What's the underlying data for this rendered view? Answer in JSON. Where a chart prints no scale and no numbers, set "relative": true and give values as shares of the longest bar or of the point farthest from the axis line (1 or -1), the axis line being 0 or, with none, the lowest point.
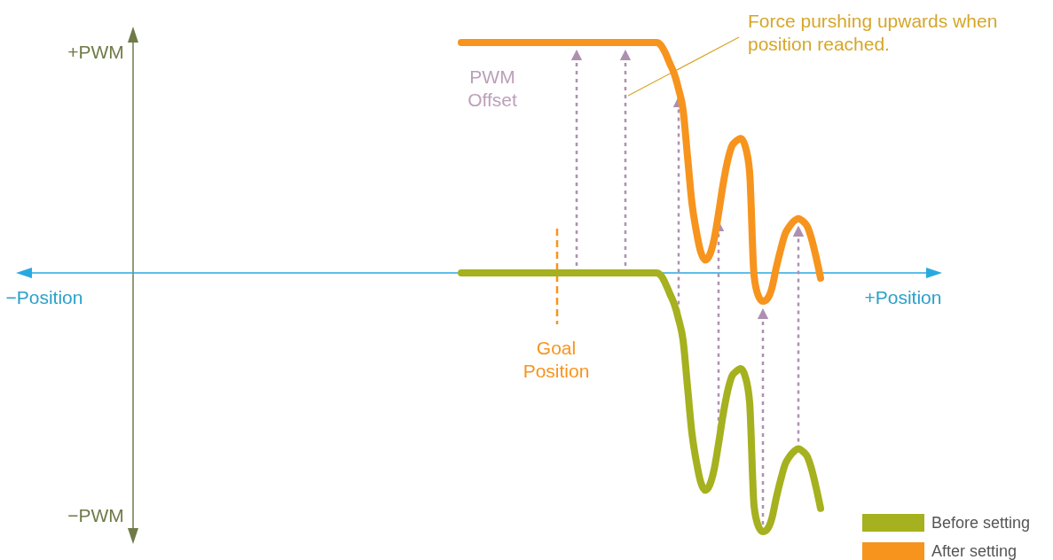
{
  "chart_data": {
    "type": "line",
    "relative": true,
    "legend": "bottom right",
    "line_style": "solid",
    "ref_lines": [
      {
        "axis": "y",
        "value": 0,
        "color": "#29a9e0"
      }
    ],
    "categories": [
      null,
      null,
      null,
      null,
      null,
      null,
      null,
      null,
      null,
      null,
      null,
      null,
      null,
      null,
      null,
      null,
      null,
      null,
      null,
      null,
      null,
      null,
      null,
      null,
      null,
      null,
      null,
      null,
      null,
      null,
      null,
      null,
      null,
      null,
      null,
      null,
      null,
      null,
      null,
      null,
      null,
      null,
      null,
      null,
      null,
      null,
      null,
      null,
      null,
      null,
      null,
      null,
      null,
      null,
      null,
      null,
      null,
      null,
      null,
      null,
      null,
      null,
      null,
      null,
      null,
      null,
      null,
      null,
      null,
      null,
      null,
      null,
      null,
      null,
      null,
      null,
      null,
      null,
      null,
      null,
      null,
      null
    ],
    "series": [
      {
        "name": "Before setting",
        "color": "#a5b11e",
        "values": [
          0,
          0,
          0,
          0,
          0,
          0,
          0,
          0,
          0,
          0,
          0,
          0,
          0,
          0,
          0,
          0,
          0,
          0,
          0,
          0,
          0,
          0,
          0,
          0,
          0,
          0,
          0,
          0,
          0,
          0,
          0,
          0,
          0,
          0,
          0,
          0,
          0,
          0,
          0,
          0,
          0,
          0,
          0,
          0,
          0,
          -0.01,
          -0.04,
          -0.08,
          -0.12,
          -0.18,
          -0.26,
          -0.44,
          -0.62,
          -0.73,
          -0.81,
          -0.84,
          -0.82,
          -0.76,
          -0.66,
          -0.55,
          -0.46,
          -0.4,
          -0.38,
          -0.37,
          -0.4,
          -0.5,
          -0.9,
          -0.98,
          -1,
          -0.99,
          -0.95,
          -0.87,
          -0.8,
          -0.74,
          -0.71,
          -0.69,
          -0.68,
          -0.69,
          -0.71,
          -0.76,
          -0.83,
          -0.91
        ]
      },
      {
        "name": "After setting",
        "color": "#f7941d",
        "values": [
          0.89,
          0.89,
          0.89,
          0.89,
          0.89,
          0.89,
          0.89,
          0.89,
          0.89,
          0.89,
          0.89,
          0.89,
          0.89,
          0.89,
          0.89,
          0.89,
          0.89,
          0.89,
          0.89,
          0.89,
          0.89,
          0.89,
          0.89,
          0.89,
          0.89,
          0.89,
          0.89,
          0.89,
          0.89,
          0.89,
          0.89,
          0.89,
          0.89,
          0.89,
          0.89,
          0.89,
          0.89,
          0.89,
          0.89,
          0.89,
          0.89,
          0.89,
          0.89,
          0.89,
          0.89,
          0.88,
          0.85,
          0.81,
          0.77,
          0.71,
          0.63,
          0.45,
          0.27,
          0.16,
          0.08,
          0.05,
          0.07,
          0.13,
          0.23,
          0.34,
          0.43,
          0.49,
          0.51,
          0.52,
          0.49,
          0.39,
          -0.01,
          -0.09,
          -0.11,
          -0.1,
          -0.06,
          0.02,
          0.09,
          0.15,
          0.18,
          0.2,
          0.21,
          0.2,
          0.18,
          0.13,
          0.06,
          -0.02
        ]
      }
    ],
    "annotations": [
      "+PWM",
      "−PWM",
      "−Position",
      "+Position",
      "PWM\nOffset",
      "Goal\nPosition",
      "Force purshing upwards when\nposition reached."
    ]
  }
}
